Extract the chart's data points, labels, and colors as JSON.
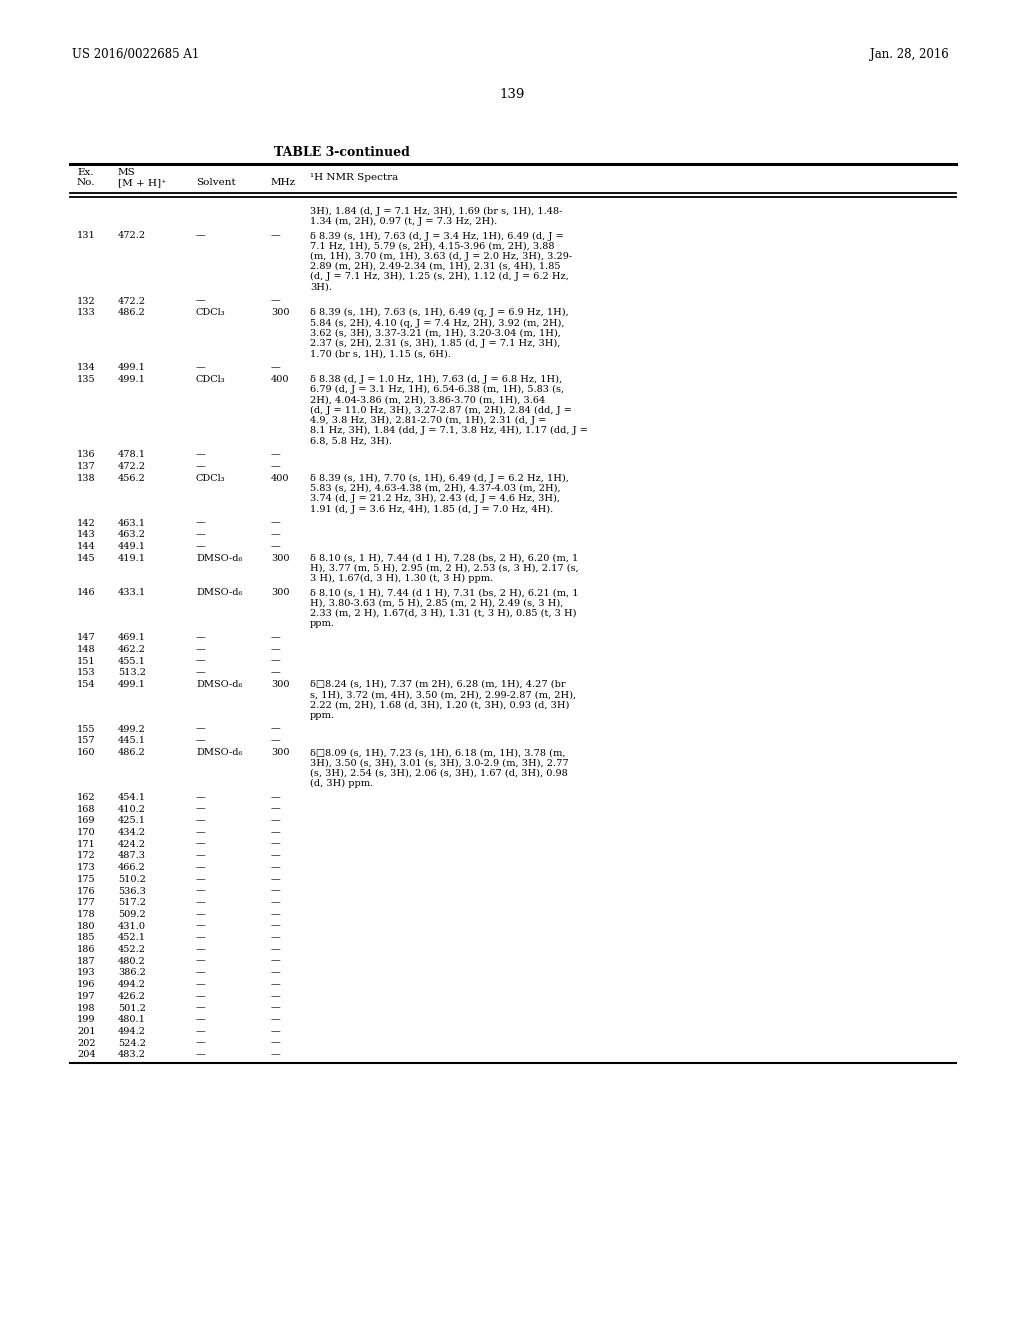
{
  "header_left": "US 2016/0022685 A1",
  "header_right": "Jan. 28, 2016",
  "page_number": "139",
  "table_title": "TABLE 3-continued",
  "background_color": "#ffffff",
  "text_color": "#000000",
  "rows": [
    {
      "ex": "",
      "ms": "",
      "solvent": "",
      "mhz": "",
      "nmr": "3H), 1.84 (d, J = 7.1 Hz, 3H), 1.69 (br s, 1H), 1.48-\n1.34 (m, 2H), 0.97 (t, J = 7.3 Hz, 2H)."
    },
    {
      "ex": "131",
      "ms": "472.2",
      "solvent": "—",
      "mhz": "—",
      "nmr": "δ 8.39 (s, 1H), 7.63 (d, J = 3.4 Hz, 1H), 6.49 (d, J =\n7.1 Hz, 1H), 5.79 (s, 2H), 4.15-3.96 (m, 2H), 3.88\n(m, 1H), 3.70 (m, 1H), 3.63 (d, J = 2.0 Hz, 3H), 3.29-\n2.89 (m, 2H), 2.49-2.34 (m, 1H), 2.31 (s, 4H), 1.85\n(d, J = 7.1 Hz, 3H), 1.25 (s, 2H), 1.12 (d, J = 6.2 Hz,\n3H)."
    },
    {
      "ex": "132",
      "ms": "472.2",
      "solvent": "—",
      "mhz": "—",
      "nmr": ""
    },
    {
      "ex": "133",
      "ms": "486.2",
      "solvent": "CDCl₃",
      "mhz": "300",
      "nmr": "δ 8.39 (s, 1H), 7.63 (s, 1H), 6.49 (q, J = 6.9 Hz, 1H),\n5.84 (s, 2H), 4.10 (q, J = 7.4 Hz, 2H), 3.92 (m, 2H),\n3.62 (s, 3H), 3.37-3.21 (m, 1H), 3.20-3.04 (m, 1H),\n2.37 (s, 2H), 2.31 (s, 3H), 1.85 (d, J = 7.1 Hz, 3H),\n1.70 (br s, 1H), 1.15 (s, 6H)."
    },
    {
      "ex": "134",
      "ms": "499.1",
      "solvent": "—",
      "mhz": "—",
      "nmr": ""
    },
    {
      "ex": "135",
      "ms": "499.1",
      "solvent": "CDCl₃",
      "mhz": "400",
      "nmr": "δ 8.38 (d, J = 1.0 Hz, 1H), 7.63 (d, J = 6.8 Hz, 1H),\n6.79 (d, J = 3.1 Hz, 1H), 6.54-6.38 (m, 1H), 5.83 (s,\n2H), 4.04-3.86 (m, 2H), 3.86-3.70 (m, 1H), 3.64\n(d, J = 11.0 Hz, 3H), 3.27-2.87 (m, 2H), 2.84 (dd, J =\n4.9, 3.8 Hz, 3H), 2.81-2.70 (m, 1H), 2.31 (d, J =\n8.1 Hz, 3H), 1.84 (dd, J = 7.1, 3.8 Hz, 4H), 1.17 (dd, J =\n6.8, 5.8 Hz, 3H)."
    },
    {
      "ex": "136",
      "ms": "478.1",
      "solvent": "—",
      "mhz": "—",
      "nmr": ""
    },
    {
      "ex": "137",
      "ms": "472.2",
      "solvent": "—",
      "mhz": "—",
      "nmr": ""
    },
    {
      "ex": "138",
      "ms": "456.2",
      "solvent": "CDCl₃",
      "mhz": "400",
      "nmr": "δ 8.39 (s, 1H), 7.70 (s, 1H), 6.49 (d, J = 6.2 Hz, 1H),\n5.83 (s, 2H), 4.63-4.38 (m, 2H), 4.37-4.03 (m, 2H),\n3.74 (d, J = 21.2 Hz, 3H), 2.43 (d, J = 4.6 Hz, 3H),\n1.91 (d, J = 3.6 Hz, 4H), 1.85 (d, J = 7.0 Hz, 4H)."
    },
    {
      "ex": "142",
      "ms": "463.1",
      "solvent": "—",
      "mhz": "—",
      "nmr": ""
    },
    {
      "ex": "143",
      "ms": "463.2",
      "solvent": "—",
      "mhz": "—",
      "nmr": ""
    },
    {
      "ex": "144",
      "ms": "449.1",
      "solvent": "—",
      "mhz": "—",
      "nmr": ""
    },
    {
      "ex": "145",
      "ms": "419.1",
      "solvent": "DMSO-d₆",
      "mhz": "300",
      "nmr": "δ 8.10 (s, 1 H), 7.44 (d 1 H), 7.28 (bs, 2 H), 6.20 (m, 1\nH), 3.77 (m, 5 H), 2.95 (m, 2 H), 2.53 (s, 3 H), 2.17 (s,\n3 H), 1.67(d, 3 H), 1.30 (t, 3 H) ppm."
    },
    {
      "ex": "146",
      "ms": "433.1",
      "solvent": "DMSO-d₆",
      "mhz": "300",
      "nmr": "δ 8.10 (s, 1 H), 7.44 (d 1 H), 7.31 (bs, 2 H), 6.21 (m, 1\nH), 3.80-3.63 (m, 5 H), 2.85 (m, 2 H), 2.49 (s, 3 H),\n2.33 (m, 2 H), 1.67(d, 3 H), 1.31 (t, 3 H), 0.85 (t, 3 H)\nppm."
    },
    {
      "ex": "147",
      "ms": "469.1",
      "solvent": "—",
      "mhz": "—",
      "nmr": ""
    },
    {
      "ex": "148",
      "ms": "462.2",
      "solvent": "—",
      "mhz": "—",
      "nmr": ""
    },
    {
      "ex": "151",
      "ms": "455.1",
      "solvent": "—",
      "mhz": "—",
      "nmr": ""
    },
    {
      "ex": "153",
      "ms": "513.2",
      "solvent": "—",
      "mhz": "—",
      "nmr": ""
    },
    {
      "ex": "154",
      "ms": "499.1",
      "solvent": "DMSO-d₆",
      "mhz": "300",
      "nmr": "δ□8.24 (s, 1H), 7.37 (m 2H), 6.28 (m, 1H), 4.27 (br\ns, 1H), 3.72 (m, 4H), 3.50 (m, 2H), 2.99-2.87 (m, 2H),\n2.22 (m, 2H), 1.68 (d, 3H), 1.20 (t, 3H), 0.93 (d, 3H)\nppm."
    },
    {
      "ex": "155",
      "ms": "499.2",
      "solvent": "—",
      "mhz": "—",
      "nmr": ""
    },
    {
      "ex": "157",
      "ms": "445.1",
      "solvent": "—",
      "mhz": "—",
      "nmr": ""
    },
    {
      "ex": "160",
      "ms": "486.2",
      "solvent": "DMSO-d₆",
      "mhz": "300",
      "nmr": "δ□8.09 (s, 1H), 7.23 (s, 1H), 6.18 (m, 1H), 3.78 (m,\n3H), 3.50 (s, 3H), 3.01 (s, 3H), 3.0-2.9 (m, 3H), 2.77\n(s, 3H), 2.54 (s, 3H), 2.06 (s, 3H), 1.67 (d, 3H), 0.98\n(d, 3H) ppm."
    },
    {
      "ex": "162",
      "ms": "454.1",
      "solvent": "—",
      "mhz": "—",
      "nmr": ""
    },
    {
      "ex": "168",
      "ms": "410.2",
      "solvent": "—",
      "mhz": "—",
      "nmr": ""
    },
    {
      "ex": "169",
      "ms": "425.1",
      "solvent": "—",
      "mhz": "—",
      "nmr": ""
    },
    {
      "ex": "170",
      "ms": "434.2",
      "solvent": "—",
      "mhz": "—",
      "nmr": ""
    },
    {
      "ex": "171",
      "ms": "424.2",
      "solvent": "—",
      "mhz": "—",
      "nmr": ""
    },
    {
      "ex": "172",
      "ms": "487.3",
      "solvent": "—",
      "mhz": "—",
      "nmr": ""
    },
    {
      "ex": "173",
      "ms": "466.2",
      "solvent": "—",
      "mhz": "—",
      "nmr": ""
    },
    {
      "ex": "175",
      "ms": "510.2",
      "solvent": "—",
      "mhz": "—",
      "nmr": ""
    },
    {
      "ex": "176",
      "ms": "536.3",
      "solvent": "—",
      "mhz": "—",
      "nmr": ""
    },
    {
      "ex": "177",
      "ms": "517.2",
      "solvent": "—",
      "mhz": "—",
      "nmr": ""
    },
    {
      "ex": "178",
      "ms": "509.2",
      "solvent": "—",
      "mhz": "—",
      "nmr": ""
    },
    {
      "ex": "180",
      "ms": "431.0",
      "solvent": "—",
      "mhz": "—",
      "nmr": ""
    },
    {
      "ex": "185",
      "ms": "452.1",
      "solvent": "—",
      "mhz": "—",
      "nmr": ""
    },
    {
      "ex": "186",
      "ms": "452.2",
      "solvent": "—",
      "mhz": "—",
      "nmr": ""
    },
    {
      "ex": "187",
      "ms": "480.2",
      "solvent": "—",
      "mhz": "—",
      "nmr": ""
    },
    {
      "ex": "193",
      "ms": "386.2",
      "solvent": "—",
      "mhz": "—",
      "nmr": ""
    },
    {
      "ex": "196",
      "ms": "494.2",
      "solvent": "—",
      "mhz": "—",
      "nmr": ""
    },
    {
      "ex": "197",
      "ms": "426.2",
      "solvent": "—",
      "mhz": "—",
      "nmr": ""
    },
    {
      "ex": "198",
      "ms": "501.2",
      "solvent": "—",
      "mhz": "—",
      "nmr": ""
    },
    {
      "ex": "199",
      "ms": "480.1",
      "solvent": "—",
      "mhz": "—",
      "nmr": ""
    },
    {
      "ex": "201",
      "ms": "494.2",
      "solvent": "—",
      "mhz": "—",
      "nmr": ""
    },
    {
      "ex": "202",
      "ms": "524.2",
      "solvent": "—",
      "mhz": "—",
      "nmr": ""
    },
    {
      "ex": "204",
      "ms": "483.2",
      "solvent": "—",
      "mhz": "—",
      "nmr": ""
    }
  ]
}
